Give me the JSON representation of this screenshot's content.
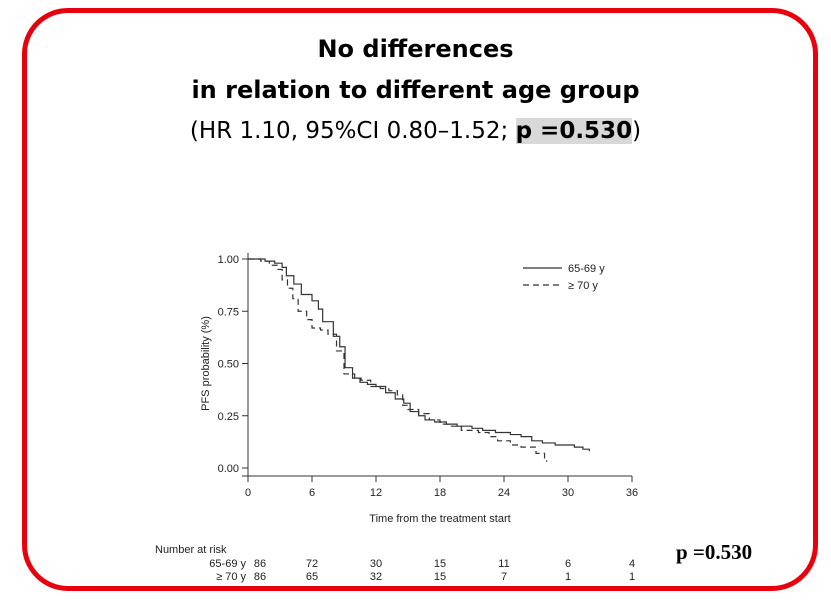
{
  "header": {
    "line1": "No differences",
    "line2": "in relation to different age group",
    "line3_prefix": "(HR 1.10, 95%CI 0.80–1.52; ",
    "line3_p": "p =0.530",
    "line3_suffix": ")"
  },
  "p_note": "p =0.530",
  "chart_data": {
    "type": "line",
    "ylabel": "PFS probability (%)",
    "xlabel": "Time from the treatment start",
    "xlim": [
      0,
      36
    ],
    "ylim": [
      0,
      1
    ],
    "x_ticks": [
      0,
      6,
      12,
      18,
      24,
      30,
      36
    ],
    "y_ticks": [
      "0.00",
      "0.25",
      "0.50",
      "0.75",
      "1.00"
    ],
    "legend_position": "top-right",
    "series": [
      {
        "name": "65-69 y",
        "style": "solid",
        "points": [
          [
            0,
            1.0
          ],
          [
            1.6,
            0.99
          ],
          [
            2.5,
            0.98
          ],
          [
            3.2,
            0.96
          ],
          [
            3.6,
            0.92
          ],
          [
            4.3,
            0.88
          ],
          [
            5.0,
            0.83
          ],
          [
            6.0,
            0.8
          ],
          [
            6.6,
            0.76
          ],
          [
            7.0,
            0.7
          ],
          [
            8.0,
            0.63
          ],
          [
            8.6,
            0.58
          ],
          [
            9.1,
            0.48
          ],
          [
            9.8,
            0.43
          ],
          [
            10.5,
            0.41
          ],
          [
            11.2,
            0.4
          ],
          [
            12.0,
            0.39
          ],
          [
            12.9,
            0.36
          ],
          [
            13.8,
            0.33
          ],
          [
            14.6,
            0.31
          ],
          [
            15.2,
            0.27
          ],
          [
            16.0,
            0.25
          ],
          [
            16.6,
            0.23
          ],
          [
            17.5,
            0.22
          ],
          [
            18.6,
            0.21
          ],
          [
            19.6,
            0.2
          ],
          [
            21.0,
            0.19
          ],
          [
            22.0,
            0.18
          ],
          [
            23.2,
            0.17
          ],
          [
            24.6,
            0.16
          ],
          [
            25.6,
            0.15
          ],
          [
            26.6,
            0.13
          ],
          [
            27.6,
            0.12
          ],
          [
            28.8,
            0.11
          ],
          [
            30.6,
            0.1
          ],
          [
            31.4,
            0.09
          ],
          [
            32.0,
            0.08
          ]
        ]
      },
      {
        "name": "≥ 70 y",
        "style": "dashed",
        "points": [
          [
            0,
            1.0
          ],
          [
            1.2,
            0.99
          ],
          [
            2.0,
            0.97
          ],
          [
            2.8,
            0.95
          ],
          [
            3.2,
            0.9
          ],
          [
            3.7,
            0.86
          ],
          [
            4.2,
            0.81
          ],
          [
            4.7,
            0.75
          ],
          [
            5.5,
            0.71
          ],
          [
            6.0,
            0.67
          ],
          [
            6.8,
            0.66
          ],
          [
            7.5,
            0.64
          ],
          [
            8.3,
            0.56
          ],
          [
            9.0,
            0.45
          ],
          [
            10.0,
            0.43
          ],
          [
            10.6,
            0.42
          ],
          [
            11.5,
            0.39
          ],
          [
            12.4,
            0.38
          ],
          [
            13.2,
            0.37
          ],
          [
            14.0,
            0.35
          ],
          [
            14.5,
            0.3
          ],
          [
            15.0,
            0.28
          ],
          [
            16.0,
            0.26
          ],
          [
            17.0,
            0.23
          ],
          [
            18.0,
            0.21
          ],
          [
            19.0,
            0.2
          ],
          [
            20.0,
            0.18
          ],
          [
            21.6,
            0.17
          ],
          [
            22.6,
            0.15
          ],
          [
            23.4,
            0.13
          ],
          [
            24.6,
            0.11
          ],
          [
            25.6,
            0.1
          ],
          [
            27.0,
            0.07
          ],
          [
            27.8,
            0.04
          ],
          [
            28.0,
            0.03
          ]
        ]
      }
    ],
    "risk_table": {
      "title": "Number at risk",
      "times": [
        0,
        6,
        12,
        18,
        24,
        30,
        36
      ],
      "rows": [
        {
          "label": "65-69 y",
          "values": [
            "86",
            "72",
            "30",
            "15",
            "11",
            "6",
            "4"
          ]
        },
        {
          "label": "≥ 70 y",
          "values": [
            "86",
            "65",
            "32",
            "15",
            "7",
            "1",
            "1"
          ]
        }
      ]
    }
  }
}
